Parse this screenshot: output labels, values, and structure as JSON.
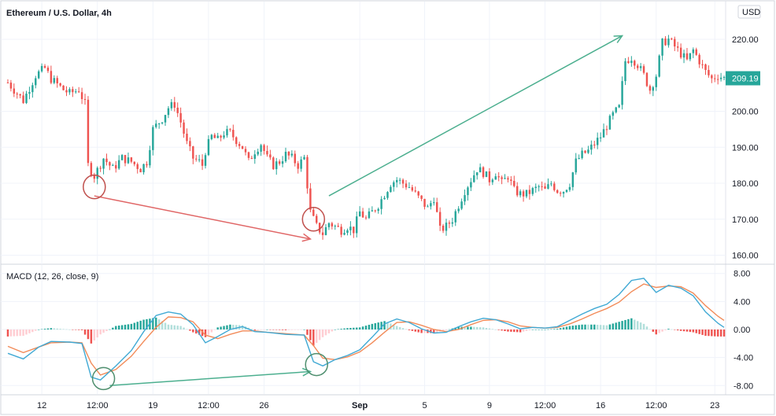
{
  "chart_data": [
    {
      "type": "candlestick",
      "title": "Ethereum / U.S. Dollar, 4h",
      "currency": "USD",
      "y_ticks": [
        160,
        170,
        180,
        190,
        200,
        210,
        220
      ],
      "y_tick_labels": [
        "160.00",
        "170.00",
        "180.00",
        "190.00",
        "200.00",
        "209.19",
        "220.00"
      ],
      "ylim": [
        157.5,
        230.5
      ],
      "last_price": 209.19,
      "last_price_label": "209.19",
      "up_color": "#26a69a",
      "down_color": "#ef5350",
      "close_path": [
        [
          0,
          208
        ],
        [
          5,
          203
        ],
        [
          9,
          210
        ],
        [
          12,
          212
        ],
        [
          14,
          209
        ],
        [
          18,
          206
        ],
        [
          20,
          205
        ],
        [
          23,
          206
        ],
        [
          25,
          202
        ],
        [
          26,
          185
        ],
        [
          28,
          182
        ],
        [
          31,
          187
        ],
        [
          34,
          184
        ],
        [
          37,
          187
        ],
        [
          40,
          186
        ],
        [
          43,
          184
        ],
        [
          45,
          186
        ],
        [
          47,
          195
        ],
        [
          50,
          198
        ],
        [
          52,
          201
        ],
        [
          54,
          202
        ],
        [
          56,
          197
        ],
        [
          58,
          191
        ],
        [
          60,
          187
        ],
        [
          62,
          186
        ],
        [
          63,
          185
        ],
        [
          64,
          189
        ],
        [
          66,
          193
        ],
        [
          68,
          192
        ],
        [
          70,
          194
        ],
        [
          72,
          194
        ],
        [
          74,
          192
        ],
        [
          76,
          190
        ],
        [
          78,
          186
        ],
        [
          80,
          189
        ],
        [
          82,
          191
        ],
        [
          84,
          187
        ],
        [
          86,
          185
        ],
        [
          88,
          186
        ],
        [
          90,
          188
        ],
        [
          92,
          187
        ],
        [
          94,
          185
        ],
        [
          96,
          187
        ],
        [
          98,
          172
        ],
        [
          100,
          168
        ],
        [
          102,
          166
        ],
        [
          104,
          169
        ],
        [
          106,
          168
        ],
        [
          108,
          167
        ],
        [
          110,
          168
        ],
        [
          112,
          167
        ],
        [
          114,
          172
        ],
        [
          116,
          170
        ],
        [
          118,
          172
        ],
        [
          120,
          174
        ],
        [
          122,
          177
        ],
        [
          124,
          180
        ],
        [
          126,
          181
        ],
        [
          128,
          180
        ],
        [
          130,
          179
        ],
        [
          132,
          177
        ],
        [
          134,
          175
        ],
        [
          136,
          173
        ],
        [
          138,
          176
        ],
        [
          140,
          167
        ],
        [
          142,
          168
        ],
        [
          144,
          170
        ],
        [
          146,
          174
        ],
        [
          148,
          178
        ],
        [
          150,
          181
        ],
        [
          152,
          184
        ],
        [
          154,
          183
        ],
        [
          156,
          181
        ],
        [
          158,
          183
        ],
        [
          160,
          180
        ],
        [
          162,
          182
        ],
        [
          164,
          178
        ],
        [
          166,
          177
        ],
        [
          168,
          177
        ],
        [
          170,
          178
        ],
        [
          172,
          179
        ],
        [
          174,
          178
        ],
        [
          176,
          180
        ],
        [
          178,
          178
        ],
        [
          180,
          178
        ],
        [
          182,
          180
        ],
        [
          184,
          186
        ],
        [
          186,
          188
        ],
        [
          188,
          189
        ],
        [
          190,
          191
        ],
        [
          192,
          193
        ],
        [
          194,
          196
        ],
        [
          196,
          199
        ],
        [
          198,
          201
        ],
        [
          200,
          214
        ],
        [
          202,
          215
        ],
        [
          204,
          213
        ],
        [
          206,
          210
        ],
        [
          208,
          206
        ],
        [
          210,
          210
        ],
        [
          212,
          219
        ],
        [
          214,
          220
        ],
        [
          216,
          218
        ],
        [
          218,
          216
        ],
        [
          220,
          214
        ],
        [
          222,
          217
        ],
        [
          224,
          214
        ],
        [
          226,
          211
        ],
        [
          228,
          209
        ],
        [
          230,
          210
        ],
        [
          232,
          209.19
        ]
      ],
      "candle_count": 233
    },
    {
      "type": "macd",
      "title": "MACD (12, 26, close, 9)",
      "y_ticks": [
        -8,
        -4,
        0,
        4,
        8
      ],
      "y_tick_labels": [
        "-8.00",
        "-4.00",
        "0.00",
        "4.00",
        "8.00"
      ],
      "ylim": [
        -9.2,
        9.2
      ],
      "macd_color": "#40a9d4",
      "signal_color": "#f28b59",
      "hist_colors": {
        "pos_rising": "#26a69a",
        "pos_falling": "#b2dfdb",
        "neg_falling": "#ef5350",
        "neg_rising": "#ffcdd2"
      },
      "macd_path": [
        [
          0,
          -3.4
        ],
        [
          5,
          -4.2
        ],
        [
          10,
          -2.5
        ],
        [
          14,
          -1.7
        ],
        [
          20,
          -1.8
        ],
        [
          24,
          -2.0
        ],
        [
          27,
          -6.8
        ],
        [
          30,
          -7.2
        ],
        [
          35,
          -5.2
        ],
        [
          40,
          -3.0
        ],
        [
          44,
          -0.3
        ],
        [
          48,
          2.0
        ],
        [
          52,
          2.5
        ],
        [
          56,
          2.2
        ],
        [
          60,
          0.7
        ],
        [
          64,
          -1.9
        ],
        [
          68,
          -1.0
        ],
        [
          72,
          0.0
        ],
        [
          76,
          0.4
        ],
        [
          80,
          -0.3
        ],
        [
          84,
          -0.4
        ],
        [
          90,
          -0.7
        ],
        [
          96,
          -0.8
        ],
        [
          99,
          -4.6
        ],
        [
          102,
          -5.2
        ],
        [
          106,
          -4.3
        ],
        [
          110,
          -3.7
        ],
        [
          114,
          -2.9
        ],
        [
          118,
          -1.1
        ],
        [
          122,
          0.8
        ],
        [
          126,
          1.5
        ],
        [
          130,
          1.0
        ],
        [
          134,
          0.1
        ],
        [
          138,
          -0.5
        ],
        [
          142,
          -0.4
        ],
        [
          146,
          0.4
        ],
        [
          150,
          1.1
        ],
        [
          154,
          1.6
        ],
        [
          158,
          1.4
        ],
        [
          162,
          0.8
        ],
        [
          166,
          0.1
        ],
        [
          170,
          0.3
        ],
        [
          174,
          0.2
        ],
        [
          178,
          0.4
        ],
        [
          182,
          1.3
        ],
        [
          186,
          2.2
        ],
        [
          190,
          3.0
        ],
        [
          194,
          3.6
        ],
        [
          198,
          5.0
        ],
        [
          202,
          7.0
        ],
        [
          206,
          7.3
        ],
        [
          210,
          5.3
        ],
        [
          214,
          6.3
        ],
        [
          218,
          5.9
        ],
        [
          222,
          4.8
        ],
        [
          226,
          2.5
        ],
        [
          230,
          0.9
        ],
        [
          232,
          0.3
        ]
      ],
      "signal_path": [
        [
          0,
          -2.4
        ],
        [
          5,
          -3.3
        ],
        [
          10,
          -2.5
        ],
        [
          14,
          -1.9
        ],
        [
          20,
          -1.8
        ],
        [
          24,
          -1.9
        ],
        [
          27,
          -4.8
        ],
        [
          30,
          -6.5
        ],
        [
          35,
          -5.7
        ],
        [
          40,
          -3.8
        ],
        [
          44,
          -1.7
        ],
        [
          48,
          0.3
        ],
        [
          52,
          1.8
        ],
        [
          56,
          1.7
        ],
        [
          60,
          1.1
        ],
        [
          64,
          -0.8
        ],
        [
          68,
          -1.3
        ],
        [
          72,
          -0.7
        ],
        [
          76,
          -0.2
        ],
        [
          80,
          -0.2
        ],
        [
          84,
          -0.4
        ],
        [
          90,
          -0.6
        ],
        [
          96,
          -0.8
        ],
        [
          99,
          -2.3
        ],
        [
          102,
          -4.1
        ],
        [
          106,
          -4.3
        ],
        [
          110,
          -3.9
        ],
        [
          114,
          -3.2
        ],
        [
          118,
          -1.9
        ],
        [
          122,
          -0.4
        ],
        [
          126,
          1.0
        ],
        [
          130,
          1.1
        ],
        [
          134,
          0.6
        ],
        [
          138,
          0.0
        ],
        [
          142,
          -0.3
        ],
        [
          146,
          0.0
        ],
        [
          150,
          0.7
        ],
        [
          154,
          1.3
        ],
        [
          158,
          1.4
        ],
        [
          162,
          1.1
        ],
        [
          166,
          0.5
        ],
        [
          170,
          0.3
        ],
        [
          174,
          0.2
        ],
        [
          178,
          0.3
        ],
        [
          182,
          0.8
        ],
        [
          186,
          1.5
        ],
        [
          190,
          2.3
        ],
        [
          194,
          3.0
        ],
        [
          198,
          3.9
        ],
        [
          202,
          5.4
        ],
        [
          206,
          6.5
        ],
        [
          210,
          6.0
        ],
        [
          214,
          6.2
        ],
        [
          218,
          6.1
        ],
        [
          222,
          5.2
        ],
        [
          226,
          3.4
        ],
        [
          230,
          1.9
        ],
        [
          232,
          1.3
        ]
      ]
    }
  ],
  "x_axis": {
    "ticks": [
      {
        "label": "12",
        "i": 11
      },
      {
        "label": "12:00",
        "i": 29
      },
      {
        "label": "19",
        "i": 47
      },
      {
        "label": "12:00",
        "i": 65
      },
      {
        "label": "26",
        "i": 83
      },
      {
        "label": "Sep",
        "i": 114,
        "bold": true
      },
      {
        "label": "5",
        "i": 135
      },
      {
        "label": "9",
        "i": 156
      },
      {
        "label": "12:00",
        "i": 174
      },
      {
        "label": "16",
        "i": 192
      },
      {
        "label": "12:00",
        "i": 210
      },
      {
        "label": "23",
        "i": 229
      }
    ]
  },
  "annotations": {
    "price_down_arrow": {
      "from": [
        28,
        176.5
      ],
      "to": [
        98,
        164.5
      ],
      "color": "#e06666"
    },
    "price_up_arrow": {
      "from": [
        104,
        176.5
      ],
      "to": [
        199,
        221
      ],
      "color": "#4caf8f"
    },
    "price_circles": [
      {
        "i": 28,
        "v": 179,
        "color": "#c0504d"
      },
      {
        "i": 99,
        "v": 170,
        "color": "#c0504d"
      }
    ],
    "macd_arrow": {
      "from": [
        33,
        -8.0
      ],
      "to": [
        98,
        -6.0
      ],
      "color": "#4caf8f"
    },
    "macd_circles": [
      {
        "i": 31,
        "v": -7.0,
        "color": "#4f8f6f"
      },
      {
        "i": 100,
        "v": -5.0,
        "color": "#4f8f6f"
      }
    ]
  }
}
